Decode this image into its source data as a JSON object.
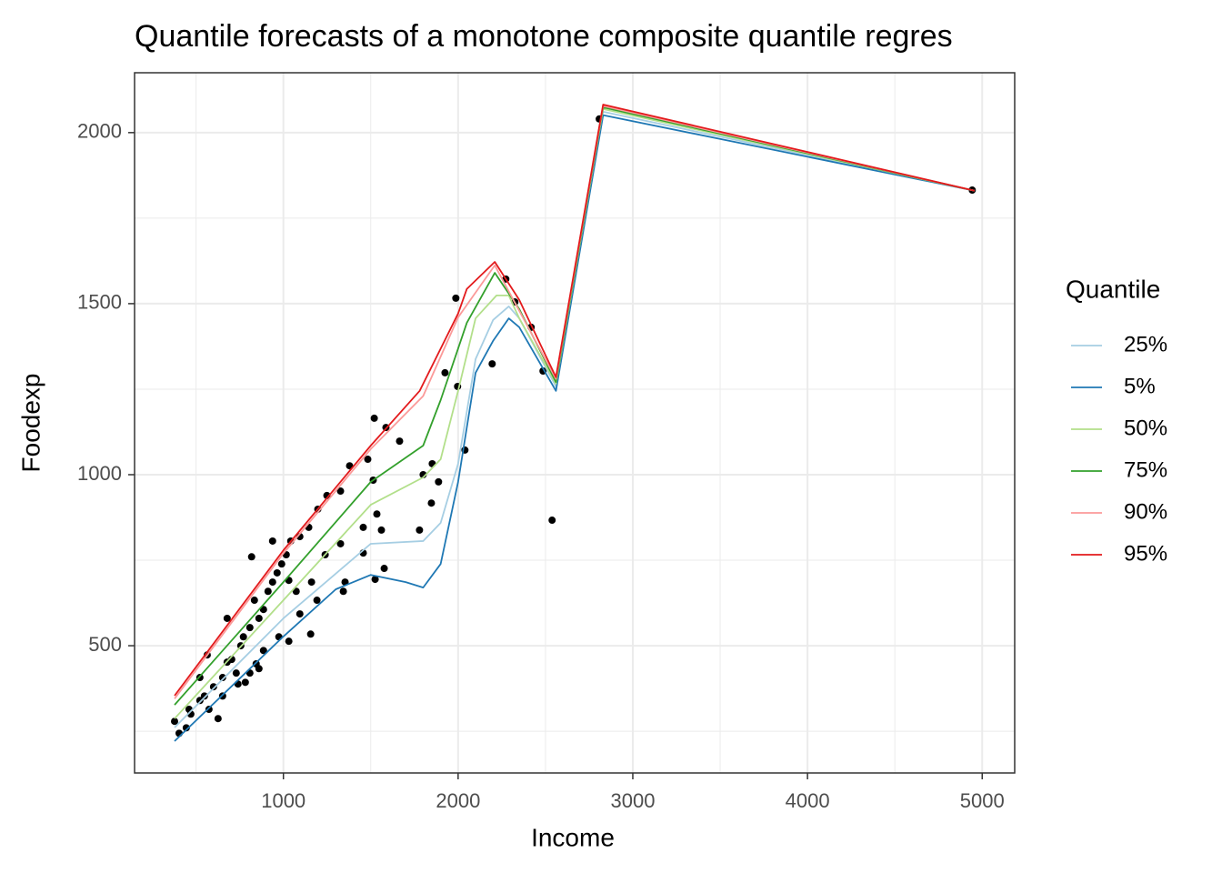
{
  "chart_data": {
    "type": "line",
    "title": "Quantile forecasts of a monotone composite quantile regres",
    "x_label": "Income",
    "y_label": "Foodexp",
    "legend_title": "Quantile",
    "legend_position": "right",
    "grid": true,
    "xlim": [
      148,
      5186
    ],
    "ylim": [
      128,
      2175
    ],
    "xticks": [
      1000,
      2000,
      3000,
      4000,
      5000
    ],
    "yticks": [
      500,
      1000,
      1500,
      2000
    ],
    "points": {
      "color": "#000000",
      "x": [
        377,
        403,
        444,
        470,
        460,
        522,
        548,
        600,
        564,
        652,
        678,
        704,
        730,
        756,
        652,
        626,
        678,
        771,
        808,
        834,
        860,
        886,
        912,
        938,
        964,
        990,
        1016,
        1042,
        1094,
        1145,
        1197,
        1249,
        1327,
        1379,
        1483,
        1514,
        1665,
        1520,
        1587,
        1925,
        1987,
        1997,
        2039,
        2195,
        2273,
        2325,
        2418,
        2486,
        2538,
        2808,
        4943,
        1525,
        1577,
        1353,
        1343,
        1156,
        1031,
        886,
        808,
        860,
        740,
        1031,
        1094,
        1161,
        1239,
        1327,
        1457,
        1535,
        1561,
        1779,
        1847,
        1888,
        1800,
        1852,
        1457,
        1192,
        1073,
        974,
        844,
        782,
        938,
        818,
        522,
        574
      ],
      "values": [
        279,
        244,
        260,
        300,
        314,
        340,
        353,
        380,
        473,
        407,
        452,
        460,
        420,
        500,
        353,
        287,
        580,
        526,
        553,
        633,
        580,
        606,
        659,
        686,
        713,
        739,
        766,
        806,
        819,
        846,
        899,
        939,
        952,
        1026,
        1045,
        984,
        1098,
        1165,
        1138,
        1298,
        1516,
        1258,
        1072,
        1324,
        1572,
        1505,
        1431,
        1303,
        867,
        2040,
        1832,
        694,
        726,
        686,
        659,
        534,
        513,
        486,
        420,
        433,
        388,
        691,
        593,
        686,
        766,
        798,
        771,
        885,
        838,
        838,
        917,
        979,
        1000,
        1032,
        846,
        633,
        659,
        526,
        447,
        393,
        806,
        760,
        407,
        314
      ]
    },
    "series": [
      {
        "name": "25%",
        "color": "#a6cee3",
        "x": [
          377,
          1000,
          1500,
          1800,
          1900,
          2000,
          2100,
          2200,
          2290,
          2350,
          2560,
          2830,
          4957
        ],
        "values": [
          261,
          580,
          798,
          806,
          859,
          1032,
          1338,
          1452,
          1492,
          1457,
          1258,
          2061,
          1830
        ]
      },
      {
        "name": "5%",
        "color": "#1f78b4",
        "x": [
          377,
          1000,
          1300,
          1500,
          1700,
          1800,
          1900,
          2000,
          2100,
          2200,
          2290,
          2350,
          2560,
          2830,
          4957
        ],
        "values": [
          221,
          527,
          665,
          707,
          686,
          670,
          739,
          979,
          1298,
          1391,
          1457,
          1431,
          1245,
          2051,
          1830
        ]
      },
      {
        "name": "50%",
        "color": "#b2df8a",
        "x": [
          377,
          1000,
          1500,
          1800,
          1900,
          2000,
          2100,
          2220,
          2290,
          2350,
          2560,
          2830,
          4957
        ],
        "values": [
          287,
          633,
          912,
          992,
          1045,
          1245,
          1457,
          1524,
          1524,
          1457,
          1266,
          2069,
          1830
        ]
      },
      {
        "name": "75%",
        "color": "#33a02c",
        "x": [
          377,
          1000,
          1500,
          1800,
          1900,
          2050,
          2210,
          2350,
          2560,
          2830,
          4957
        ],
        "values": [
          327,
          686,
          979,
          1085,
          1218,
          1444,
          1590,
          1484,
          1271,
          2074,
          1830
        ]
      },
      {
        "name": "90%",
        "color": "#fb9a99",
        "x": [
          377,
          1000,
          1500,
          1800,
          2000,
          2210,
          2560,
          2830,
          4957
        ],
        "values": [
          345,
          770,
          1075,
          1230,
          1460,
          1612,
          1280,
          2078,
          1830
        ]
      },
      {
        "name": "95%",
        "color": "#e31a1c",
        "x": [
          377,
          1000,
          1500,
          1780,
          2000,
          2050,
          2210,
          2350,
          2560,
          2830,
          4957
        ],
        "values": [
          354,
          779,
          1085,
          1245,
          1471,
          1543,
          1622,
          1511,
          1285,
          2082,
          1830
        ]
      }
    ]
  }
}
